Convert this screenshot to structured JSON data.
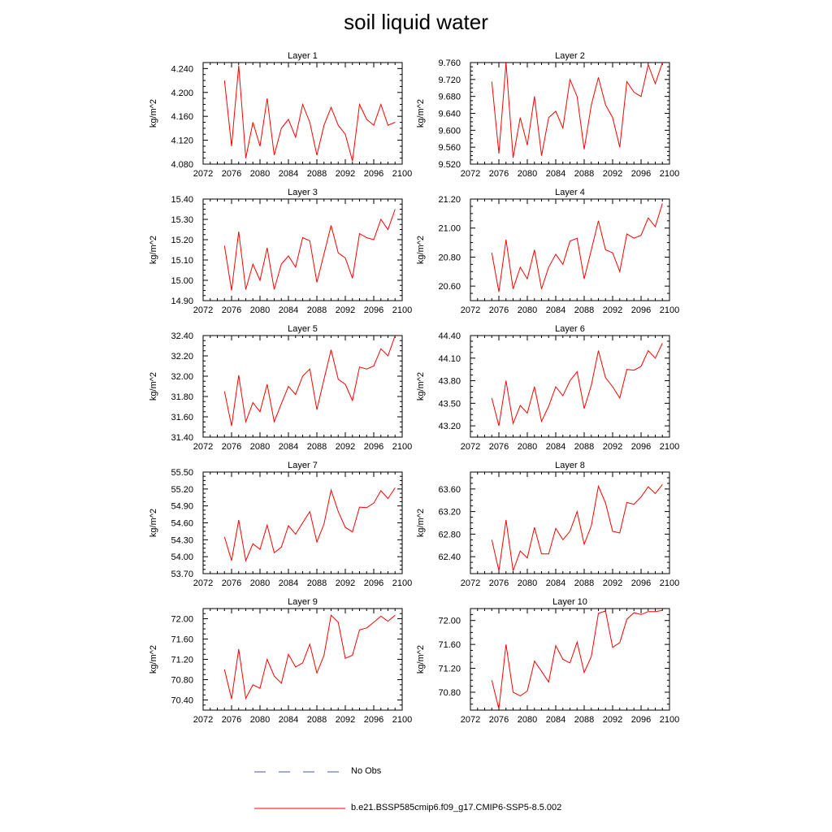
{
  "title": "soil liquid water",
  "chart_data": [
    {
      "type": "line",
      "title": "Layer 1",
      "ylabel": "kg/m^2",
      "ylim": [
        4.08,
        4.25
      ],
      "yticks": [
        4.08,
        4.12,
        4.16,
        4.2,
        4.24
      ],
      "yfmt": 3,
      "series": [
        {
          "values": [
            4.22,
            4.11,
            4.245,
            4.09,
            4.15,
            4.11,
            4.19,
            4.095,
            4.14,
            4.155,
            4.125,
            4.18,
            4.15,
            4.095,
            4.145,
            4.175,
            4.145,
            4.13,
            4.085,
            4.18,
            4.155,
            4.145,
            4.18,
            4.145,
            4.15
          ]
        }
      ]
    },
    {
      "type": "line",
      "title": "Layer 2",
      "ylabel": "kg/m^2",
      "ylim": [
        9.52,
        9.76
      ],
      "yticks": [
        9.52,
        9.56,
        9.6,
        9.64,
        9.68,
        9.72,
        9.76
      ],
      "yfmt": 3,
      "series": [
        {
          "values": [
            9.715,
            9.545,
            9.76,
            9.535,
            9.63,
            9.565,
            9.68,
            9.54,
            9.63,
            9.645,
            9.605,
            9.72,
            9.68,
            9.555,
            9.66,
            9.725,
            9.66,
            9.63,
            9.56,
            9.715,
            9.69,
            9.68,
            9.755,
            9.71,
            9.76
          ]
        }
      ]
    },
    {
      "type": "line",
      "title": "Layer 3",
      "ylabel": "kg/m^2",
      "ylim": [
        14.9,
        15.4
      ],
      "yticks": [
        14.9,
        15.0,
        15.1,
        15.2,
        15.3,
        15.4
      ],
      "yfmt": 2,
      "series": [
        {
          "values": [
            15.17,
            14.95,
            15.24,
            14.955,
            15.08,
            15.0,
            15.16,
            14.955,
            15.08,
            15.12,
            15.065,
            15.21,
            15.195,
            14.99,
            15.13,
            15.27,
            15.135,
            15.11,
            15.01,
            15.23,
            15.21,
            15.2,
            15.3,
            15.25,
            15.35
          ]
        }
      ]
    },
    {
      "type": "line",
      "title": "Layer 4",
      "ylabel": "kg/m^2",
      "ylim": [
        20.5,
        21.2
      ],
      "yticks": [
        20.6,
        20.8,
        21.0,
        21.2
      ],
      "yfmt": 2,
      "series": [
        {
          "values": [
            20.83,
            20.56,
            20.92,
            20.58,
            20.73,
            20.65,
            20.85,
            20.58,
            20.73,
            20.82,
            20.75,
            20.91,
            20.93,
            20.65,
            20.85,
            21.05,
            20.85,
            20.83,
            20.7,
            20.96,
            20.93,
            20.95,
            21.07,
            21.01,
            21.17
          ]
        }
      ]
    },
    {
      "type": "line",
      "title": "Layer 5",
      "ylabel": "kg/m^2",
      "ylim": [
        31.4,
        32.4
      ],
      "yticks": [
        31.4,
        31.6,
        31.8,
        32.0,
        32.2,
        32.4
      ],
      "yfmt": 2,
      "series": [
        {
          "values": [
            31.85,
            31.51,
            32.01,
            31.55,
            31.74,
            31.65,
            31.92,
            31.55,
            31.73,
            31.9,
            31.82,
            32.0,
            32.07,
            31.67,
            31.97,
            32.26,
            31.97,
            31.92,
            31.76,
            32.09,
            32.07,
            32.1,
            32.27,
            32.2,
            32.4
          ]
        }
      ]
    },
    {
      "type": "line",
      "title": "Layer 6",
      "ylabel": "kg/m^2",
      "ylim": [
        43.05,
        44.4
      ],
      "yticks": [
        43.2,
        43.5,
        43.8,
        44.1,
        44.4
      ],
      "yfmt": 2,
      "series": [
        {
          "values": [
            43.57,
            43.2,
            43.8,
            43.23,
            43.47,
            43.37,
            43.72,
            43.26,
            43.46,
            43.72,
            43.6,
            43.8,
            43.92,
            43.43,
            43.74,
            44.2,
            43.84,
            43.72,
            43.57,
            43.95,
            43.94,
            43.99,
            44.2,
            44.1,
            44.3
          ]
        }
      ]
    },
    {
      "type": "line",
      "title": "Layer 7",
      "ylabel": "kg/m^2",
      "ylim": [
        53.7,
        55.5
      ],
      "yticks": [
        53.7,
        54.0,
        54.3,
        54.6,
        54.9,
        55.2,
        55.5
      ],
      "yfmt": 2,
      "series": [
        {
          "values": [
            54.35,
            53.93,
            54.65,
            53.93,
            54.23,
            54.13,
            54.56,
            54.07,
            54.17,
            54.55,
            54.4,
            54.6,
            54.8,
            54.26,
            54.58,
            55.18,
            54.8,
            54.52,
            54.44,
            54.88,
            54.87,
            54.95,
            55.17,
            55.03,
            55.22
          ]
        }
      ]
    },
    {
      "type": "line",
      "title": "Layer 8",
      "ylabel": "kg/m^2",
      "ylim": [
        62.1,
        63.9
      ],
      "yticks": [
        62.4,
        62.8,
        63.2,
        63.6
      ],
      "yfmt": 2,
      "series": [
        {
          "values": [
            62.7,
            62.15,
            63.05,
            62.15,
            62.5,
            62.38,
            62.92,
            62.45,
            62.45,
            62.9,
            62.7,
            62.85,
            63.2,
            62.62,
            62.95,
            63.65,
            63.35,
            62.85,
            62.82,
            63.36,
            63.33,
            63.46,
            63.64,
            63.52,
            63.68
          ]
        }
      ]
    },
    {
      "type": "line",
      "title": "Layer 9",
      "ylabel": "kg/m^2",
      "ylim": [
        70.2,
        72.2
      ],
      "yticks": [
        70.4,
        70.8,
        71.2,
        71.6,
        72.0
      ],
      "yfmt": 2,
      "series": [
        {
          "values": [
            71.0,
            70.42,
            71.4,
            70.43,
            70.7,
            70.63,
            71.2,
            70.87,
            70.73,
            71.3,
            71.05,
            71.13,
            71.5,
            70.93,
            71.28,
            72.07,
            71.93,
            71.22,
            71.28,
            71.78,
            71.82,
            71.93,
            72.05,
            71.95,
            72.07
          ]
        }
      ]
    },
    {
      "type": "line",
      "title": "Layer 10",
      "ylabel": "kg/m^2",
      "ylim": [
        70.5,
        72.2
      ],
      "yticks": [
        70.8,
        71.2,
        71.6,
        72.0
      ],
      "yfmt": 2,
      "series": [
        {
          "values": [
            71.0,
            70.52,
            71.6,
            70.8,
            70.74,
            70.82,
            71.32,
            71.15,
            70.97,
            71.58,
            71.35,
            71.29,
            71.64,
            71.13,
            71.4,
            72.12,
            72.16,
            71.55,
            71.63,
            72.02,
            72.13,
            72.1,
            72.15,
            72.15,
            72.17
          ]
        }
      ]
    }
  ],
  "x": [
    2075,
    2076,
    2077,
    2078,
    2079,
    2080,
    2081,
    2082,
    2083,
    2084,
    2085,
    2086,
    2087,
    2088,
    2089,
    2090,
    2091,
    2092,
    2093,
    2094,
    2095,
    2096,
    2097,
    2098,
    2099
  ],
  "xlim": [
    2072,
    2100
  ],
  "xticks": [
    2072,
    2076,
    2080,
    2084,
    2088,
    2092,
    2096,
    2100
  ],
  "legend": [
    {
      "label": "No Obs",
      "color": "#4a5aa8",
      "dash": "dashed"
    },
    {
      "label": "b.e21.BSSP585cmip6.f09_g17.CMIP6-SSP5-8.5.002",
      "color": "#ff0000",
      "dash": "solid"
    }
  ]
}
